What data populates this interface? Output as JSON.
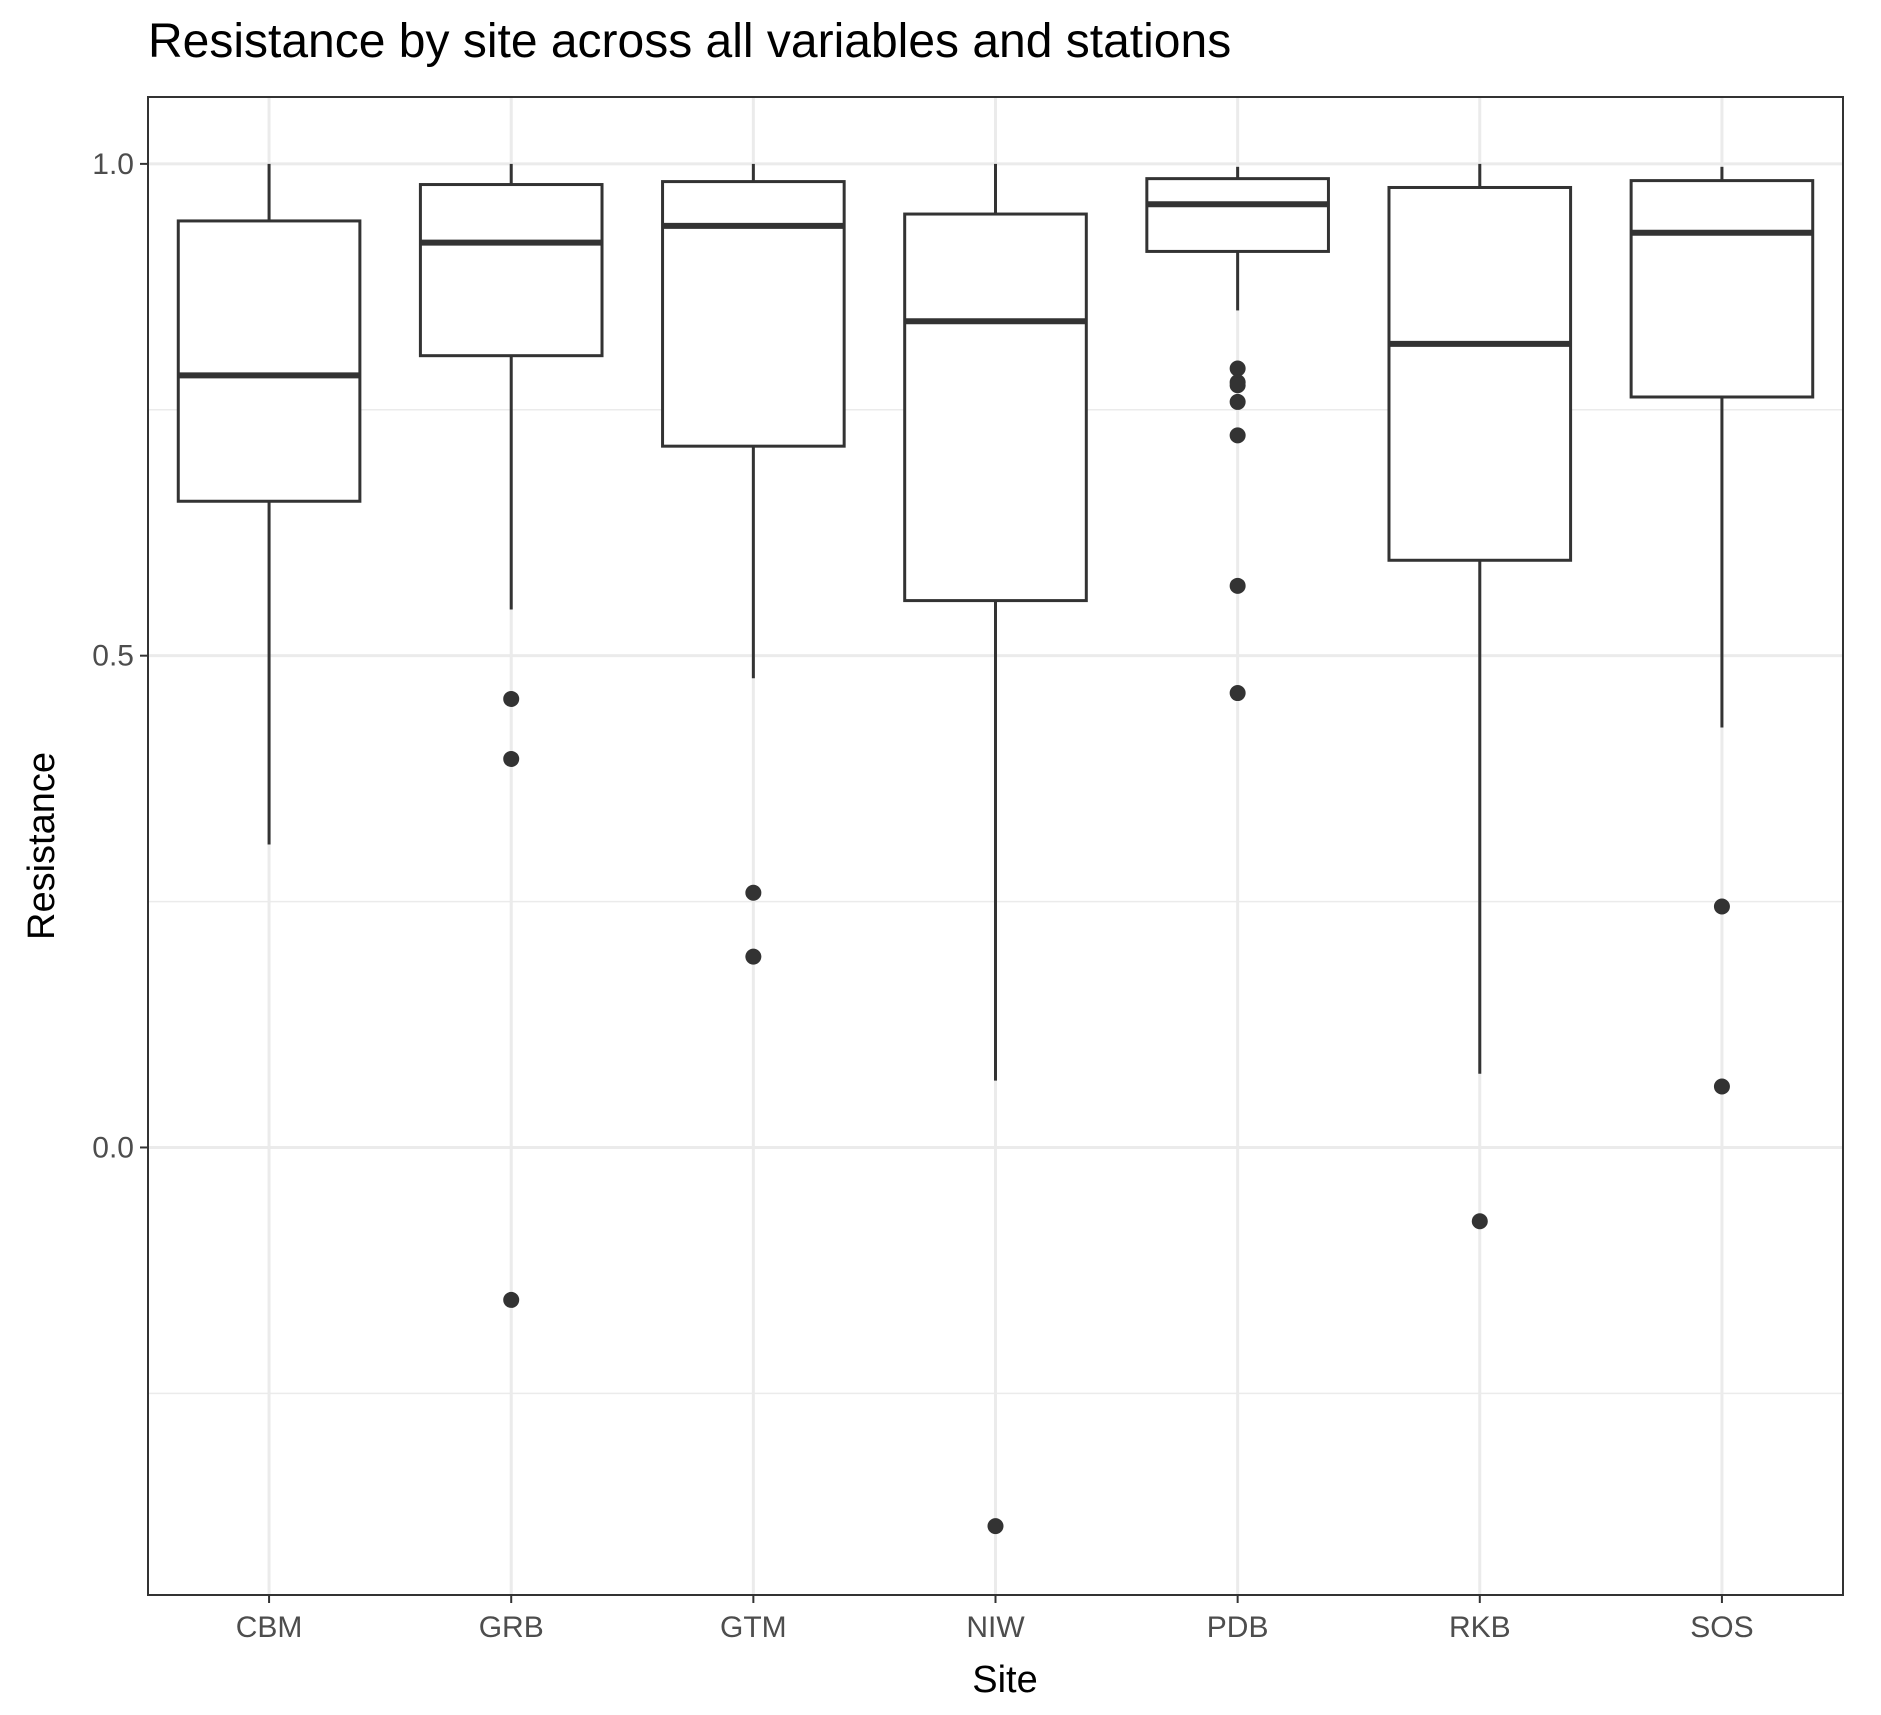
{
  "chart_data": {
    "type": "box",
    "title": "Resistance by site across all variables and stations",
    "xlabel": "Site",
    "ylabel": "Resistance",
    "ylim": [
      -0.455,
      1.068
    ],
    "y_ticks": [
      0.0,
      0.5,
      1.0
    ],
    "y_tick_labels": [
      "0.0",
      "0.5",
      "1.0"
    ],
    "grid": true,
    "legend": "none",
    "colors": {
      "box_stroke": "#333333",
      "grid": "#ebebeb",
      "panel_border": "#333333",
      "background": "#ffffff"
    },
    "categories": [
      "CBM",
      "GRB",
      "GTM",
      "NIW",
      "PDB",
      "RKB",
      "SOS"
    ],
    "boxes": [
      {
        "site": "CBM",
        "whisker_low": 0.308,
        "q1": 0.657,
        "median": 0.785,
        "q3": 0.942,
        "whisker_high": 1.0,
        "outliers": []
      },
      {
        "site": "GRB",
        "whisker_low": 0.547,
        "q1": 0.805,
        "median": 0.92,
        "q3": 0.979,
        "whisker_high": 1.0,
        "outliers": [
          0.456,
          0.395,
          -0.155
        ]
      },
      {
        "site": "GTM",
        "whisker_low": 0.477,
        "q1": 0.713,
        "median": 0.937,
        "q3": 0.982,
        "whisker_high": 1.0,
        "outliers": [
          0.259,
          0.194
        ]
      },
      {
        "site": "NIW",
        "whisker_low": 0.068,
        "q1": 0.556,
        "median": 0.84,
        "q3": 0.949,
        "whisker_high": 1.0,
        "outliers": [
          -0.385
        ]
      },
      {
        "site": "PDB",
        "whisker_low": 0.851,
        "q1": 0.911,
        "median": 0.959,
        "q3": 0.985,
        "whisker_high": 0.997,
        "outliers": [
          0.792,
          0.778,
          0.775,
          0.758,
          0.724,
          0.571,
          0.462
        ]
      },
      {
        "site": "RKB",
        "whisker_low": 0.075,
        "q1": 0.597,
        "median": 0.817,
        "q3": 0.976,
        "whisker_high": 1.0,
        "outliers": [
          -0.075
        ]
      },
      {
        "site": "SOS",
        "whisker_low": 0.427,
        "q1": 0.763,
        "median": 0.93,
        "q3": 0.983,
        "whisker_high": 0.997,
        "outliers": [
          0.245,
          0.062
        ]
      }
    ]
  }
}
